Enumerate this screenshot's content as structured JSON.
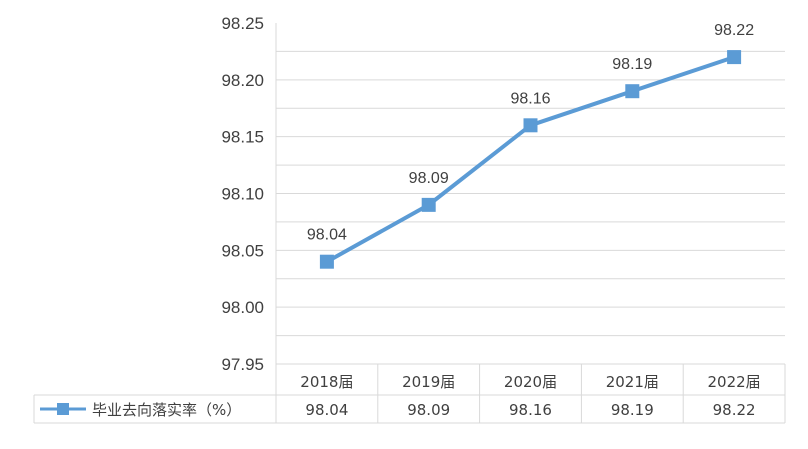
{
  "chart_data": {
    "type": "line",
    "categories": [
      "2018届",
      "2019届",
      "2020届",
      "2021届",
      "2022届"
    ],
    "series": [
      {
        "name": "毕业去向落实率（%）",
        "values": [
          98.04,
          98.09,
          98.16,
          98.19,
          98.22
        ]
      }
    ],
    "data_labels": [
      "98.04",
      "98.09",
      "98.16",
      "98.19",
      "98.22"
    ],
    "table_values": [
      "98.04",
      "98.09",
      "98.16",
      "98.19",
      "98.22"
    ],
    "y_ticks": [
      "97.95",
      "98.00",
      "98.05",
      "98.10",
      "98.15",
      "98.20",
      "98.25"
    ],
    "ylim": [
      97.95,
      98.25
    ],
    "grid": true,
    "legend": "data-table",
    "line_color": "#5B9BD5",
    "grid_color": "#D9D9D9"
  }
}
